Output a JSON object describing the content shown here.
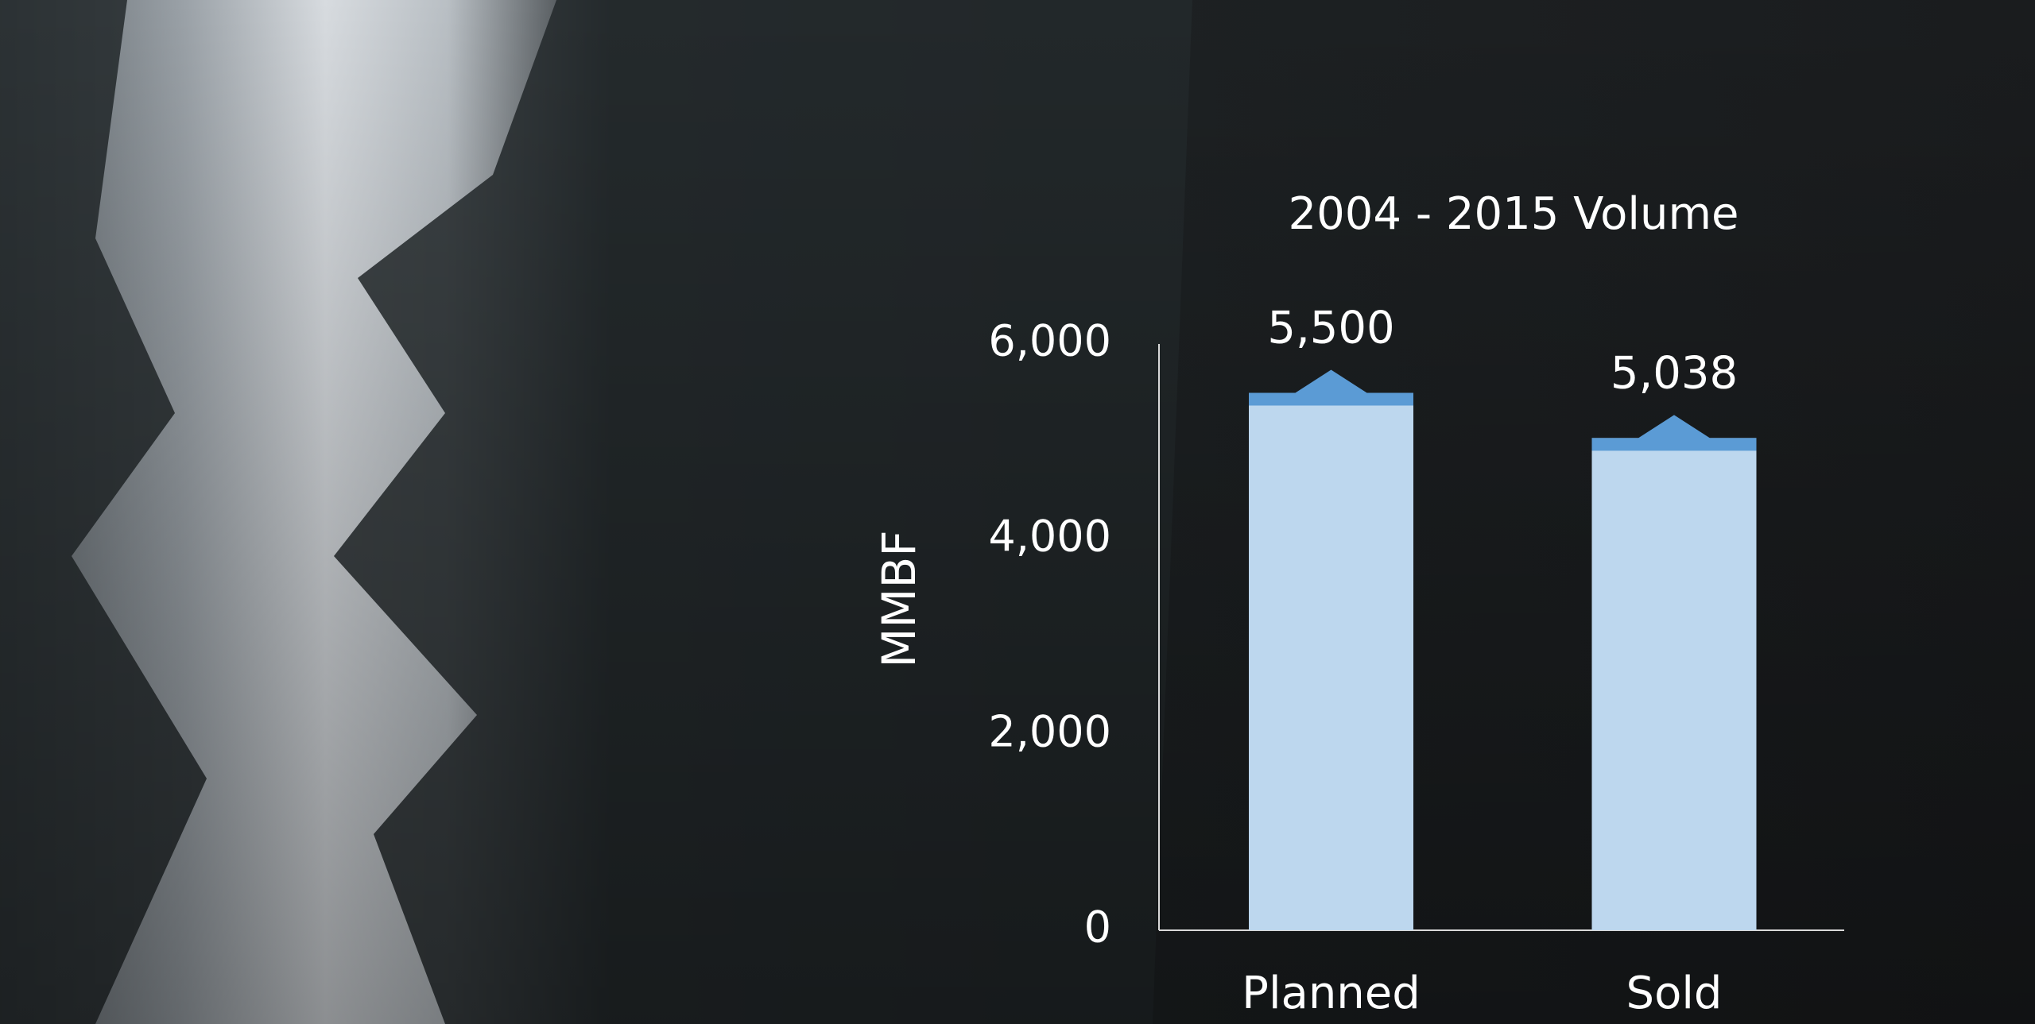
{
  "chart_data": {
    "type": "bar",
    "title": "2004 - 2015 Volume",
    "y_label": "MMBF",
    "categories": [
      "Planned",
      "Sold"
    ],
    "values": [
      5500,
      5038
    ],
    "value_labels": [
      "5,500",
      "5,038"
    ],
    "color": "#bdd7ee",
    "cap_color": "#5b9bd5",
    "ylim": [
      0,
      6000
    ],
    "yticks": [
      0,
      {
        "value": 2000,
        "label": "2,000"
      },
      {
        "value": 4000,
        "label": "4,000"
      },
      {
        "value": 6000,
        "label": "6,000"
      }
    ],
    "grid": false
  }
}
